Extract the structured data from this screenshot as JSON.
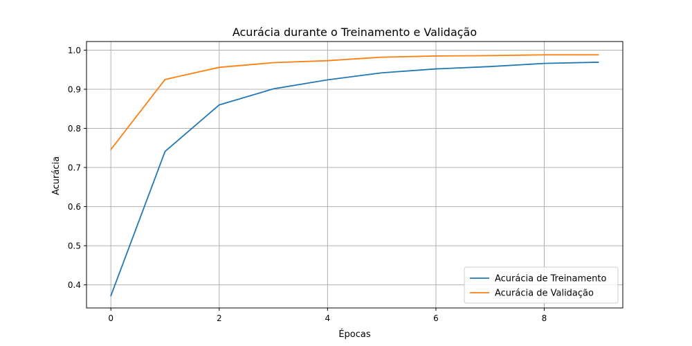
{
  "chart_data": {
    "type": "line",
    "title": "Acurácia durante o Treinamento e Validação",
    "xlabel": "Épocas",
    "ylabel": "Acurácia",
    "x": [
      0,
      1,
      2,
      3,
      4,
      5,
      6,
      7,
      8,
      9
    ],
    "xlim": [
      -0.45,
      9.45
    ],
    "ylim": [
      0.341,
      1.022
    ],
    "xticks": [
      0,
      2,
      4,
      6,
      8
    ],
    "xtick_labels": [
      "0",
      "2",
      "4",
      "6",
      "8"
    ],
    "yticks": [
      0.4,
      0.5,
      0.6,
      0.7,
      0.8,
      0.9,
      1.0
    ],
    "ytick_labels": [
      "0.4",
      "0.5",
      "0.6",
      "0.7",
      "0.8",
      "0.9",
      "1.0"
    ],
    "grid": true,
    "legend_position": "bottom-right",
    "series": [
      {
        "name": "Acurácia de Treinamento",
        "color": "#1f77b4",
        "values": [
          0.372,
          0.741,
          0.86,
          0.901,
          0.924,
          0.942,
          0.952,
          0.958,
          0.966,
          0.969
        ]
      },
      {
        "name": "Acurácia de Validação",
        "color": "#ff7f0e",
        "values": [
          0.746,
          0.925,
          0.956,
          0.968,
          0.973,
          0.982,
          0.985,
          0.986,
          0.988,
          0.988
        ]
      }
    ]
  }
}
